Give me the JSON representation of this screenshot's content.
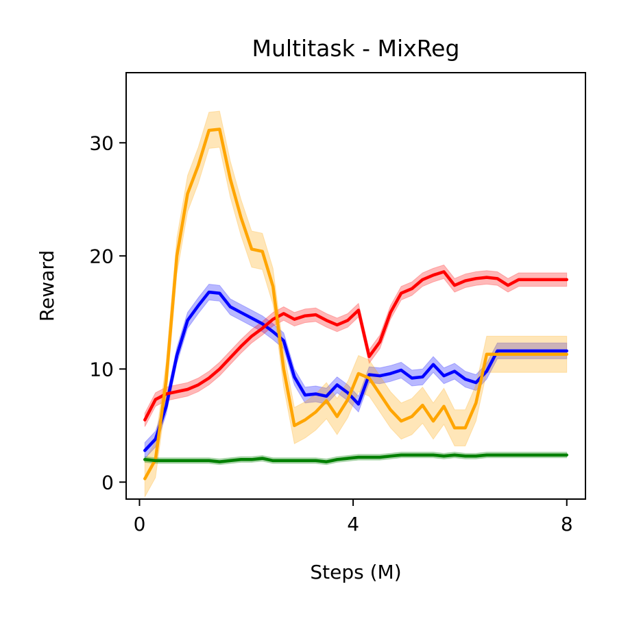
{
  "chart_data": {
    "type": "line",
    "title": "Multitask - MixReg",
    "xlabel": "Steps (M)",
    "ylabel": "Reward",
    "xlim": [
      -0.25,
      8.35
    ],
    "ylim": [
      -1.5,
      36.2
    ],
    "xticks": [
      0,
      4,
      8
    ],
    "yticks": [
      0,
      10,
      20,
      30
    ],
    "grid": false,
    "legend": "none",
    "x": [
      0.1,
      0.3,
      0.5,
      0.7,
      0.9,
      1.1,
      1.3,
      1.5,
      1.7,
      1.9,
      2.1,
      2.3,
      2.5,
      2.7,
      2.9,
      3.1,
      3.3,
      3.5,
      3.7,
      3.9,
      4.1,
      4.3,
      4.5,
      4.7,
      4.9,
      5.1,
      5.3,
      5.5,
      5.7,
      5.9,
      6.1,
      6.3,
      6.5,
      6.7,
      6.9,
      7.1,
      7.3,
      7.5,
      7.7,
      7.9,
      8.0
    ],
    "series": [
      {
        "color": "#0000ff",
        "values": [
          2.8,
          3.8,
          6.7,
          11.2,
          14.3,
          15.6,
          16.8,
          16.7,
          15.5,
          15.0,
          14.5,
          14.0,
          13.3,
          12.5,
          9.3,
          7.7,
          7.8,
          7.6,
          8.6,
          7.9,
          6.9,
          9.5,
          9.4,
          9.6,
          9.9,
          9.2,
          9.3,
          10.4,
          9.4,
          9.8,
          9.1,
          8.8,
          9.8,
          11.6,
          11.6,
          11.6,
          11.6,
          11.6,
          11.6,
          11.6,
          11.6
        ],
        "band": 0.7
      },
      {
        "color": "#ff0000",
        "values": [
          5.5,
          7.3,
          7.8,
          8.0,
          8.2,
          8.6,
          9.2,
          10.0,
          11.0,
          12.0,
          12.9,
          13.6,
          14.4,
          14.9,
          14.4,
          14.7,
          14.8,
          14.3,
          13.9,
          14.3,
          15.2,
          11.1,
          12.4,
          15.0,
          16.7,
          17.1,
          17.9,
          18.3,
          18.6,
          17.4,
          17.8,
          18.0,
          18.1,
          18.0,
          17.4,
          17.9,
          17.9,
          17.9,
          17.9,
          17.9,
          17.9
        ],
        "band": 0.6
      },
      {
        "color": "#ffa500",
        "values": [
          0.3,
          2.0,
          9.0,
          20.0,
          25.5,
          28.0,
          31.1,
          31.2,
          26.8,
          23.4,
          20.6,
          20.4,
          17.3,
          10.0,
          5.0,
          5.5,
          6.2,
          7.2,
          5.8,
          7.3,
          9.6,
          9.2,
          7.8,
          6.4,
          5.4,
          5.8,
          6.8,
          5.4,
          6.7,
          4.8,
          4.8,
          7.0,
          11.3,
          11.3,
          11.3,
          11.3,
          11.3,
          11.3,
          11.3,
          11.3,
          11.3
        ],
        "band": 1.6
      },
      {
        "color": "#008000",
        "values": [
          2.0,
          1.9,
          1.9,
          1.9,
          1.9,
          1.9,
          1.9,
          1.8,
          1.9,
          2.0,
          2.0,
          2.1,
          1.9,
          1.9,
          1.9,
          1.9,
          1.9,
          1.8,
          2.0,
          2.1,
          2.2,
          2.2,
          2.2,
          2.3,
          2.4,
          2.4,
          2.4,
          2.4,
          2.3,
          2.4,
          2.3,
          2.3,
          2.4,
          2.4,
          2.4,
          2.4,
          2.4,
          2.4,
          2.4,
          2.4,
          2.4
        ],
        "band": 0.25
      }
    ]
  }
}
